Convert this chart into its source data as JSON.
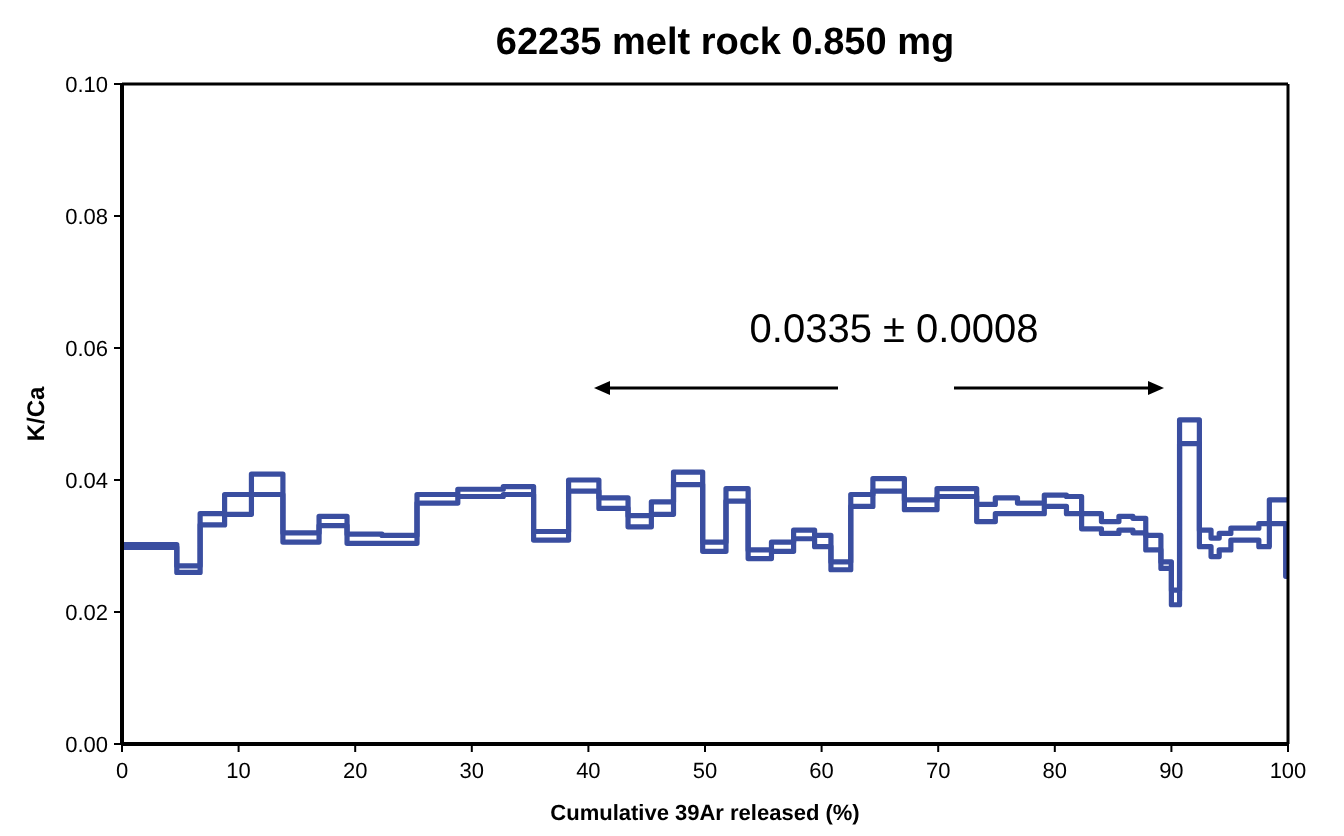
{
  "chart_data": {
    "type": "step",
    "title": "62235 melt rock 0.850 mg",
    "xlabel": "Cumulative 39Ar released (%)",
    "ylabel": "K/Ca",
    "annotations": [
      "0.0335 ± 0.0008"
    ],
    "x": [
      0,
      4.7,
      6.7,
      8.8,
      11.1,
      13.8,
      16.9,
      19.3,
      22.3,
      25.3,
      28.8,
      32.7,
      35.3,
      38.3,
      40.9,
      43.4,
      45.4,
      47.3,
      49.8,
      51.8,
      53.7,
      55.7,
      57.6,
      59.4,
      60.8,
      62.5,
      64.4,
      67.1,
      69.9,
      73.3,
      74.9,
      76.8,
      79.1,
      81.0,
      82.3,
      84.0,
      85.5,
      86.7,
      87.8,
      89.1,
      90.0,
      90.7,
      92.4,
      93.4,
      94.1,
      95.1,
      97.5,
      98.4,
      99.8
    ],
    "series": [
      {
        "color": "#3a4ea0",
        "values": [
          0.0302,
          0.027,
          0.0349,
          0.0378,
          0.0409,
          0.032,
          0.0345,
          0.0318,
          0.0316,
          0.0378,
          0.0386,
          0.039,
          0.0322,
          0.04,
          0.0373,
          0.0346,
          0.0367,
          0.0412,
          0.0306,
          0.0387,
          0.0294,
          0.0306,
          0.0324,
          0.0316,
          0.0276,
          0.0378,
          0.0402,
          0.037,
          0.0387,
          0.0363,
          0.0373,
          0.0365,
          0.0377,
          0.0375,
          0.0349,
          0.0337,
          0.0345,
          0.0342,
          0.0316,
          0.0276,
          0.0233,
          0.0491,
          0.0324,
          0.0312,
          0.0319,
          0.0327,
          0.0334,
          0.037,
          0.037
        ]
      },
      {
        "color": "#3a4ea0",
        "values": [
          0.0298,
          0.026,
          0.0332,
          0.0348,
          0.0378,
          0.0306,
          0.0331,
          0.0304,
          0.0304,
          0.0365,
          0.0375,
          0.0378,
          0.0309,
          0.0383,
          0.0357,
          0.0329,
          0.0348,
          0.0393,
          0.0292,
          0.0368,
          0.0281,
          0.0292,
          0.0311,
          0.0299,
          0.0264,
          0.036,
          0.0383,
          0.0355,
          0.0375,
          0.0337,
          0.0349,
          0.0349,
          0.036,
          0.0349,
          0.0326,
          0.0319,
          0.0324,
          0.032,
          0.0294,
          0.0266,
          0.0211,
          0.0455,
          0.0299,
          0.0284,
          0.0294,
          0.0309,
          0.0299,
          0.0334,
          0.0254
        ]
      }
    ],
    "xlim": [
      0,
      100
    ],
    "xticks": [
      0,
      10,
      20,
      30,
      40,
      50,
      60,
      70,
      80,
      90,
      100
    ],
    "ylim": [
      0,
      0.1
    ],
    "yticks": [
      {
        "value": 0,
        "label": "0.00"
      },
      {
        "value": 0.02,
        "label": "0.02"
      },
      {
        "value": 0.04,
        "label": "0.04"
      },
      {
        "value": 0.06,
        "label": "0.06"
      },
      {
        "value": 0.08,
        "label": "0.08"
      },
      {
        "value": 0.1,
        "label": "0.10"
      }
    ]
  }
}
